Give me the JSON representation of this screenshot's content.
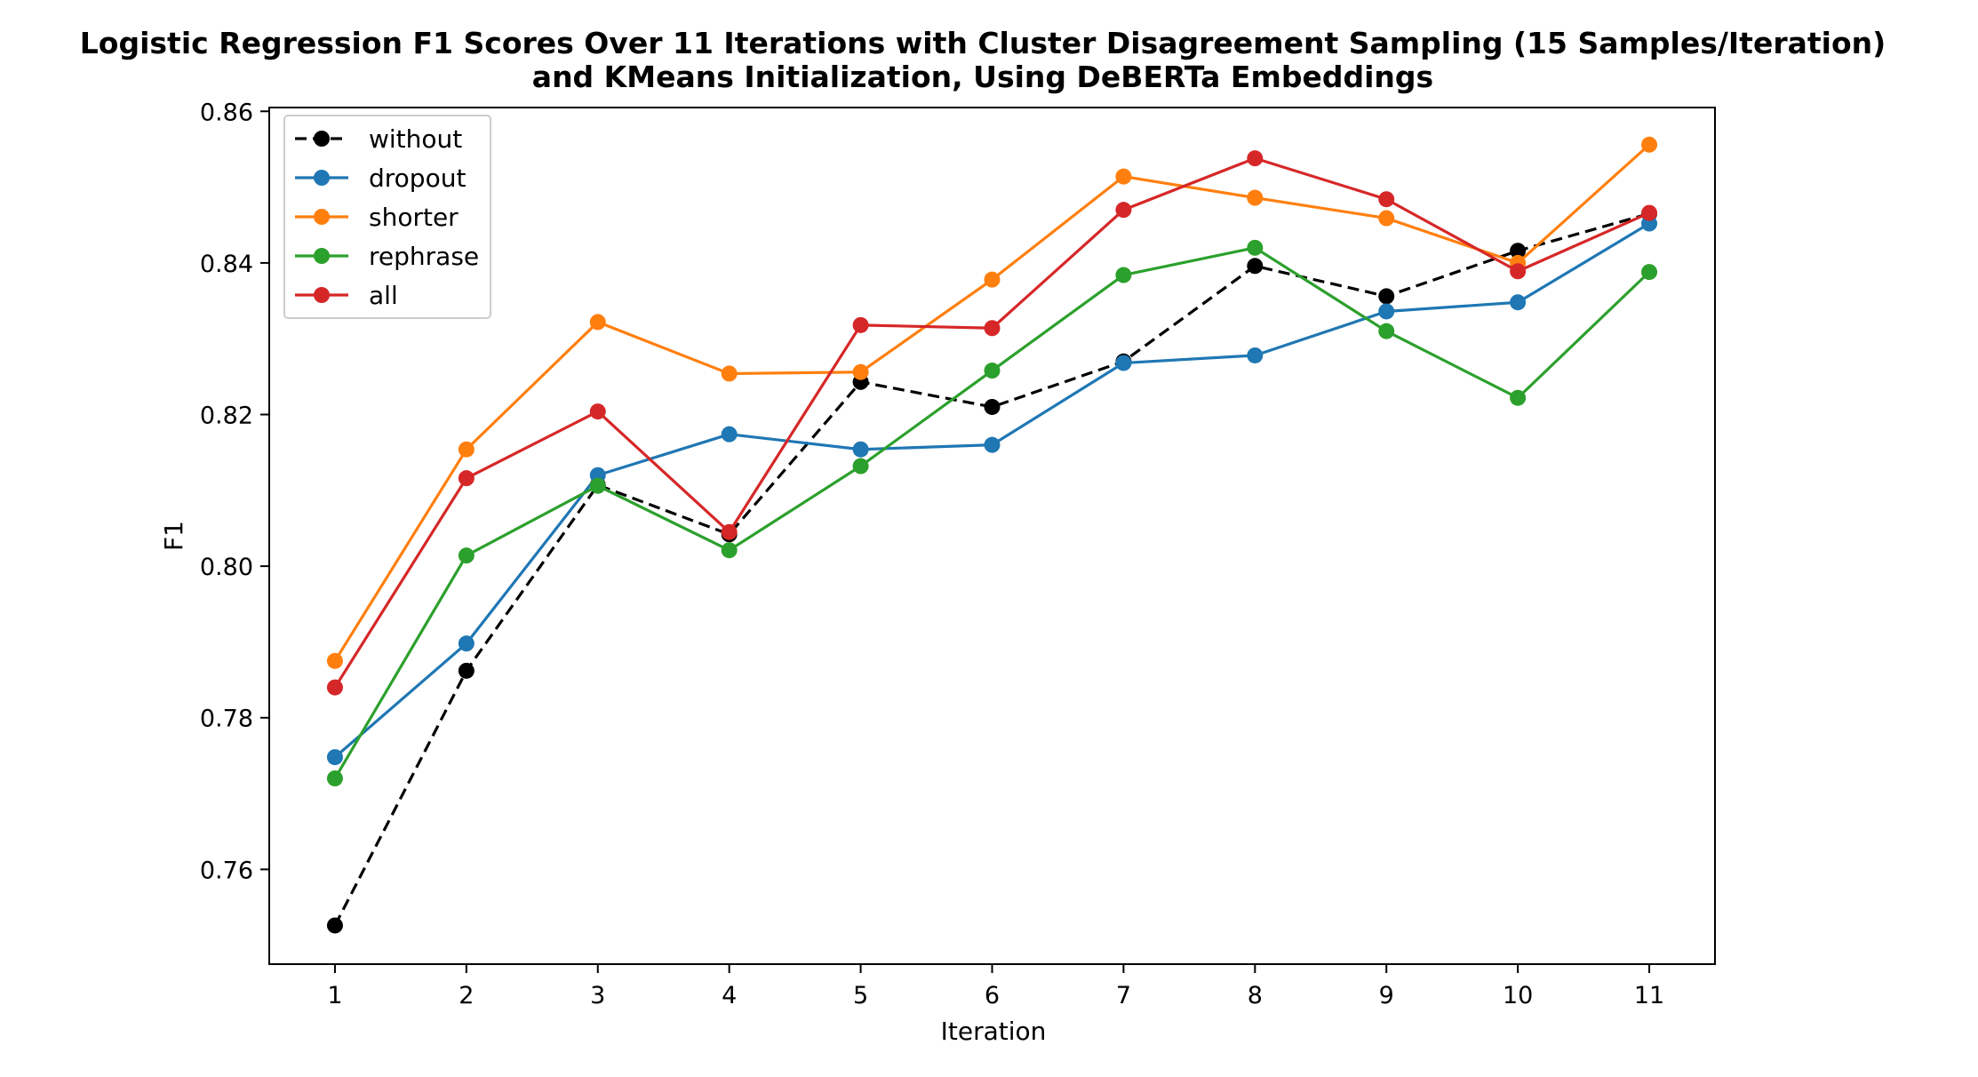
{
  "chart_data": {
    "type": "line",
    "title_line1": "Logistic Regression F1 Scores Over 11 Iterations with Cluster Disagreement Sampling (15 Samples/Iteration)",
    "title_line2": "and KMeans Initialization, Using DeBERTa Embeddings",
    "xlabel": "Iteration",
    "ylabel": "F1",
    "x": [
      1,
      2,
      3,
      4,
      5,
      6,
      7,
      8,
      9,
      10,
      11
    ],
    "xticks": [
      "1",
      "2",
      "3",
      "4",
      "5",
      "6",
      "7",
      "8",
      "9",
      "10",
      "11"
    ],
    "xlim": [
      0.5,
      11.5
    ],
    "ylim": [
      0.7475,
      0.8605
    ],
    "yticks": [
      0.76,
      0.78,
      0.8,
      0.82,
      0.84,
      0.86
    ],
    "ytick_labels": [
      "0.76",
      "0.78",
      "0.80",
      "0.82",
      "0.84",
      "0.86"
    ],
    "grid": false,
    "legend_position": "upper-left",
    "series": [
      {
        "name": "without",
        "color": "#000000",
        "dashed": true,
        "values": [
          0.7526,
          0.7862,
          0.8107,
          0.8042,
          0.8243,
          0.821,
          0.827,
          0.8396,
          0.8356,
          0.8416,
          0.8465
        ]
      },
      {
        "name": "dropout",
        "color": "#1f77b4",
        "dashed": false,
        "values": [
          0.7748,
          0.7898,
          0.812,
          0.8174,
          0.8154,
          0.816,
          0.8268,
          0.8278,
          0.8336,
          0.8348,
          0.8452
        ]
      },
      {
        "name": "shorter",
        "color": "#ff7f0e",
        "dashed": false,
        "values": [
          0.7875,
          0.8154,
          0.8322,
          0.8254,
          0.8256,
          0.8378,
          0.8514,
          0.8486,
          0.8459,
          0.84,
          0.8556
        ]
      },
      {
        "name": "rephrase",
        "color": "#2ca02c",
        "dashed": false,
        "values": [
          0.772,
          0.8014,
          0.8106,
          0.8021,
          0.8132,
          0.8258,
          0.8384,
          0.842,
          0.831,
          0.8222,
          0.8388
        ]
      },
      {
        "name": "all",
        "color": "#d62728",
        "dashed": false,
        "values": [
          0.784,
          0.8116,
          0.8204,
          0.8045,
          0.8318,
          0.8314,
          0.847,
          0.8538,
          0.8484,
          0.8389,
          0.8466
        ]
      }
    ]
  }
}
